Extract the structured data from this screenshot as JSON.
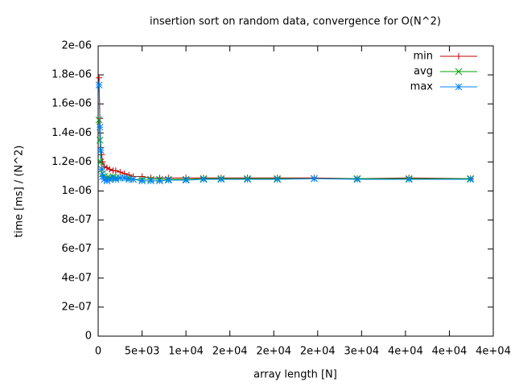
{
  "chart_data": {
    "type": "line",
    "title": "insertion sort on random data, convergence for O(N^2)",
    "x_label": "array length [N]",
    "y_label": "time [ms] / (N^2)",
    "xlim": [
      0,
      45000
    ],
    "xticks": [
      0,
      {
        "value": 5000,
        "label": "5e+03"
      },
      {
        "value": 10000,
        "label": "1e+04"
      },
      {
        "value": 15000,
        "label": "2e+04"
      },
      {
        "value": 20000,
        "label": "2e+04"
      },
      {
        "value": 25000,
        "label": "2e+04"
      },
      {
        "value": 30000,
        "label": "3e+04"
      },
      {
        "value": 35000,
        "label": "4e+04"
      },
      {
        "value": 40000,
        "label": "4e+04"
      },
      {
        "value": 45000,
        "label": "4e+04"
      }
    ],
    "ylim": [
      0,
      2e-06
    ],
    "yticks": [
      0,
      {
        "value": 2e-07,
        "label": "2e-07"
      },
      {
        "value": 4e-07,
        "label": "4e-07"
      },
      {
        "value": 6e-07,
        "label": "6e-07"
      },
      {
        "value": 8e-07,
        "label": "8e-07"
      },
      {
        "value": 1e-06,
        "label": "1e-06"
      },
      {
        "value": 1.2e-06,
        "label": "1.2e-06"
      },
      {
        "value": 1.4e-06,
        "label": "1.4e-06"
      },
      {
        "value": 1.6e-06,
        "label": "1.6e-06"
      },
      {
        "value": 1.8e-06,
        "label": "1.8e-06"
      },
      {
        "value": 2e-06,
        "label": "2e-06"
      }
    ],
    "x": [
      100,
      200,
      300,
      400,
      500,
      700,
      1000,
      1300,
      1700,
      2000,
      2500,
      3000,
      3500,
      4000,
      5000,
      6000,
      7000,
      8000,
      10000,
      12000,
      14000,
      17000,
      20400,
      24600,
      29500,
      35400,
      42400
    ],
    "legend": "top-right",
    "series": [
      {
        "name": "min",
        "color": "#c00000",
        "marker": "plus",
        "values": [
          1.78e-06,
          1.5e-06,
          1.3e-06,
          1.25e-06,
          1.2e-06,
          1.17e-06,
          1.16e-06,
          1.15e-06,
          1.14e-06,
          1.14e-06,
          1.13e-06,
          1.12e-06,
          1.11e-06,
          1.1e-06,
          1.1e-06,
          1.09e-06,
          1.09e-06,
          1.09e-06,
          1.09e-06,
          1.09e-06,
          1.09e-06,
          1.09e-06,
          1.09e-06,
          1.09e-06,
          1.085e-06,
          1.09e-06,
          1.085e-06
        ]
      },
      {
        "name": "avg",
        "color": "#00a000",
        "marker": "cross",
        "values": [
          1.49e-06,
          1.35e-06,
          1.2e-06,
          1.15e-06,
          1.12e-06,
          1.1e-06,
          1.09e-06,
          1.09e-06,
          1.1e-06,
          1.09e-06,
          1.09e-06,
          1.09e-06,
          1.09e-06,
          1.08e-06,
          1.08e-06,
          1.08e-06,
          1.08e-06,
          1.08e-06,
          1.08e-06,
          1.085e-06,
          1.085e-06,
          1.085e-06,
          1.085e-06,
          1.085e-06,
          1.085e-06,
          1.085e-06,
          1.085e-06
        ]
      },
      {
        "name": "max",
        "color": "#0080ff",
        "marker": "star",
        "values": [
          1.73e-06,
          1.44e-06,
          1.28e-06,
          1.15e-06,
          1.1e-06,
          1.08e-06,
          1.07e-06,
          1.08e-06,
          1.09e-06,
          1.08e-06,
          1.09e-06,
          1.09e-06,
          1.08e-06,
          1.08e-06,
          1.07e-06,
          1.07e-06,
          1.07e-06,
          1.075e-06,
          1.075e-06,
          1.08e-06,
          1.08e-06,
          1.08e-06,
          1.08e-06,
          1.085e-06,
          1.08e-06,
          1.08e-06,
          1.08e-06
        ]
      }
    ]
  }
}
